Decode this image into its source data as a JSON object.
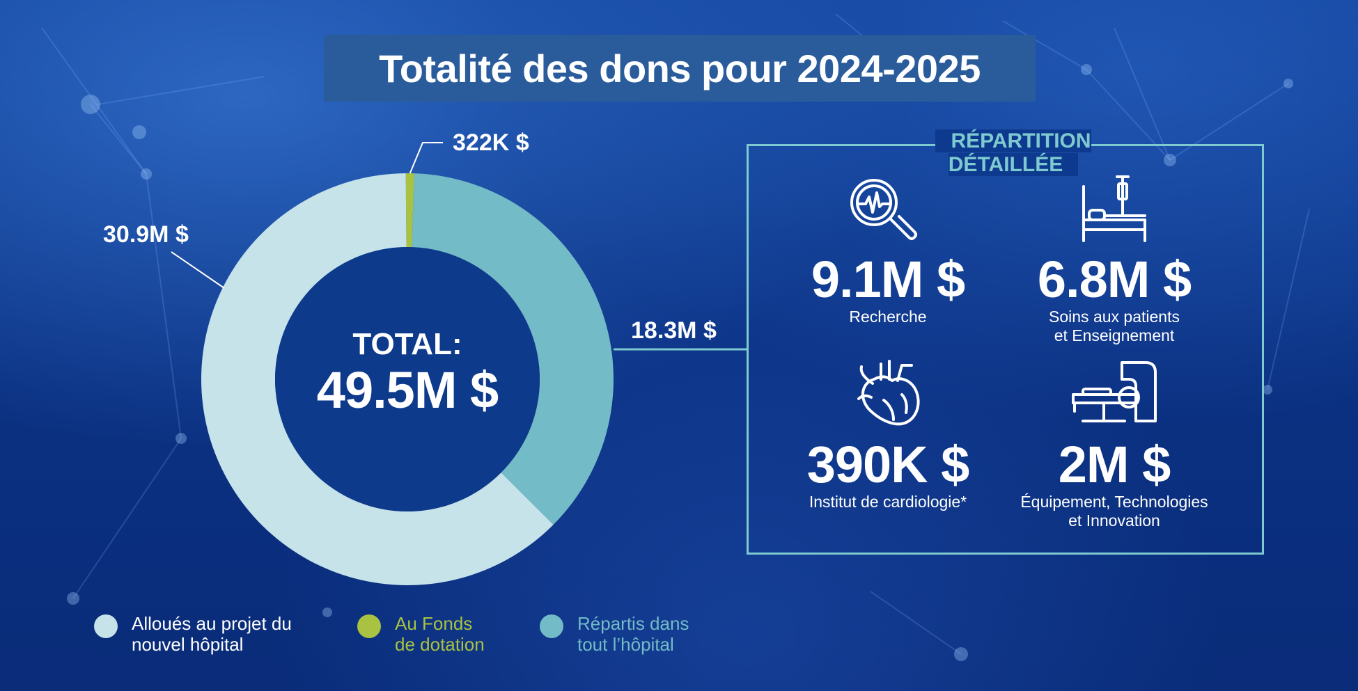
{
  "title": "Totalité des dons pour 2024-2025",
  "chart_data": {
    "type": "pie",
    "title": "Totalité des dons pour 2024-2025",
    "center_label": "TOTAL:",
    "total_label": "49.5M $",
    "total": 49.5,
    "categories": [
      "Alloués au projet du nouvel hôpital",
      "Au Fonds de dotation",
      "Répartis dans tout l’hôpital"
    ],
    "values": [
      30.9,
      0.322,
      18.3
    ],
    "value_labels": [
      "30.9M $",
      "322K $",
      "18.3M $"
    ],
    "colors": [
      "#c5e3e9",
      "#a9c241",
      "#73bbc6"
    ],
    "hole": "donut"
  },
  "detail": {
    "title": "RÉPARTITION DÉTAILLÉE",
    "items": [
      {
        "amount": "9.1M $",
        "label": "Recherche",
        "icon": "magnifier-heartbeat-icon"
      },
      {
        "amount": "6.8M $",
        "label": "Soins aux patients\net Enseignement",
        "icon": "hospital-bed-iv-icon"
      },
      {
        "amount": "390K $",
        "label": "Institut de cardiologie*",
        "icon": "heart-icon"
      },
      {
        "amount": "2M $",
        "label": "Équipement, Technologies\net Innovation",
        "icon": "mri-scanner-icon"
      }
    ]
  },
  "legend": [
    {
      "label": "Alloués au projet du\nnouvel hôpital",
      "color": "#c5e3e9",
      "text_color": "#ffffff"
    },
    {
      "label": "Au Fonds\nde dotation",
      "color": "#a9c241",
      "text_color": "#a9c241"
    },
    {
      "label": "Répartis dans\ntout l’hôpital",
      "color": "#73bbc6",
      "text_color": "#73bbc6"
    }
  ],
  "colors": {
    "background": "#0b3182",
    "title_box": "#2a5c9c",
    "frame": "#7ecad0"
  }
}
